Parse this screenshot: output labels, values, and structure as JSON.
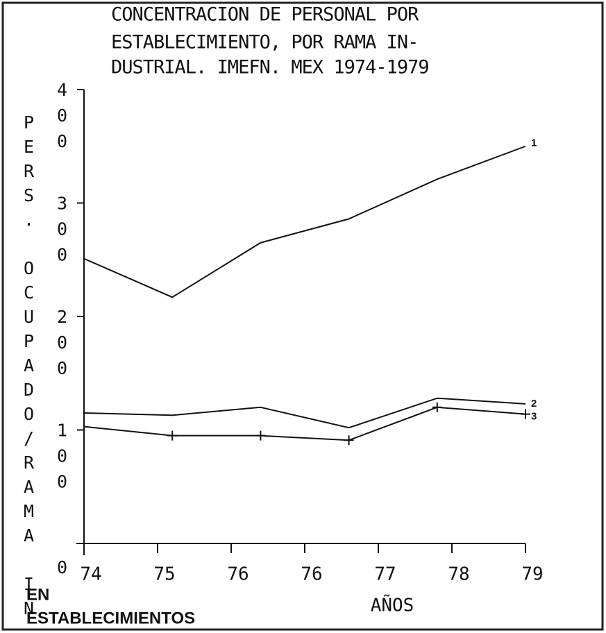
{
  "chart_data": {
    "type": "line",
    "title_lines": [
      "CONCENTRACION DE PERSONAL POR",
      "ESTABLECIMIENTO, POR RAMA IN-",
      "DUSTRIAL. IMEFN. MEX 1974-1979"
    ],
    "y_label": "PERS. OCUPADO/RAMA IN",
    "y_label_extra": [
      "EN",
      "ESTABLECIMIENTOS"
    ],
    "x_label": "AÑOS",
    "xlim": [
      0,
      6
    ],
    "xticks": [
      {
        "value": 0,
        "label": "74"
      },
      {
        "value": 1,
        "label": "75"
      },
      {
        "value": 2,
        "label": "76"
      },
      {
        "value": 3,
        "label": "76"
      },
      {
        "value": 4,
        "label": "77"
      },
      {
        "value": 5,
        "label": "78"
      },
      {
        "value": 6,
        "label": "79"
      }
    ],
    "ylim": [
      0,
      400
    ],
    "yticks": [
      0,
      100,
      200,
      300,
      400
    ],
    "x": [
      0,
      1.2,
      2.4,
      3.6,
      4.8,
      6
    ],
    "series": [
      {
        "name": "1",
        "color": "#111111",
        "values": [
          251,
          217,
          265,
          286,
          321,
          350
        ]
      },
      {
        "name": "2",
        "color": "#111111",
        "values": [
          115,
          113,
          120,
          102,
          128,
          123
        ]
      },
      {
        "name": "3",
        "color": "#111111",
        "values": [
          103,
          95,
          95,
          91,
          120,
          114
        ],
        "markers": true
      }
    ]
  }
}
